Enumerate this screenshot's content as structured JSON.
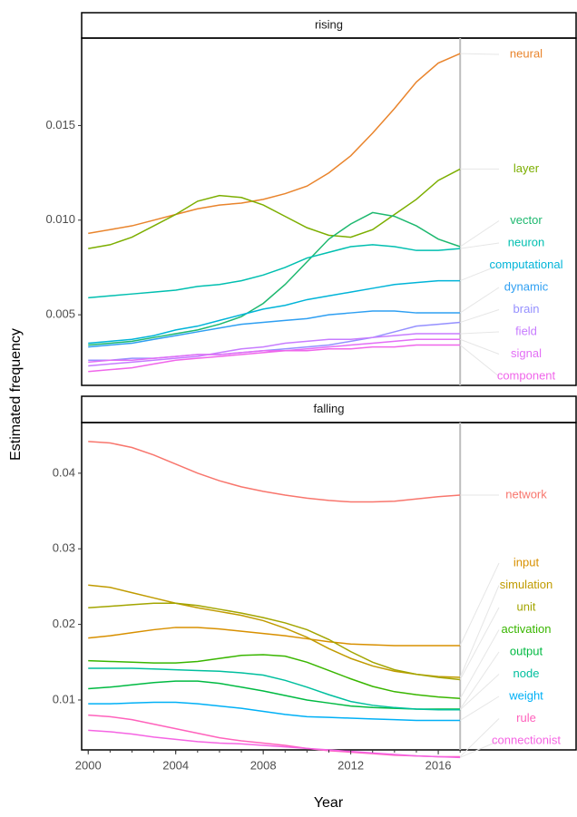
{
  "ylabel": "Estimated frequency",
  "xlabel": "Year",
  "chart_data": [
    {
      "type": "line",
      "title": "rising",
      "x": [
        2000,
        2001,
        2002,
        2003,
        2004,
        2005,
        2006,
        2007,
        2008,
        2009,
        2010,
        2011,
        2012,
        2013,
        2014,
        2015,
        2016,
        2017
      ],
      "xlim": [
        1999.7,
        2022.3
      ],
      "ylim": [
        0.00127,
        0.01962
      ],
      "yticks": [
        0.005,
        {
          "value": 0.01,
          "label": "0.010"
        },
        0.015
      ],
      "vline": 2017,
      "series": [
        {
          "name": "neural",
          "color": "#E9842C",
          "values": [
            0.0093,
            0.0095,
            0.0097,
            0.01,
            0.0103,
            0.0106,
            0.0108,
            0.0109,
            0.0111,
            0.0114,
            0.0118,
            0.0125,
            0.0134,
            0.0146,
            0.0159,
            0.0173,
            0.0183,
            0.0188
          ]
        },
        {
          "name": "layer",
          "color": "#7CAE00",
          "values": [
            0.0085,
            0.0087,
            0.0091,
            0.0097,
            0.0103,
            0.011,
            0.0113,
            0.0112,
            0.0108,
            0.0102,
            0.0096,
            0.0092,
            0.0091,
            0.0095,
            0.0103,
            0.0111,
            0.0121,
            0.0127
          ]
        },
        {
          "name": "vector",
          "color": "#1DB86F",
          "values": [
            0.0034,
            0.0035,
            0.0036,
            0.0038,
            0.004,
            0.0042,
            0.0045,
            0.0049,
            0.0056,
            0.0066,
            0.0078,
            0.009,
            0.0098,
            0.0104,
            0.0102,
            0.0097,
            0.009,
            0.0086
          ]
        },
        {
          "name": "neuron",
          "color": "#00BFB0",
          "values": [
            0.0059,
            0.006,
            0.0061,
            0.0062,
            0.0063,
            0.0065,
            0.0066,
            0.0068,
            0.0071,
            0.0075,
            0.008,
            0.0083,
            0.0086,
            0.0087,
            0.0086,
            0.0084,
            0.0084,
            0.0085
          ]
        },
        {
          "name": "computational",
          "color": "#00B4D8",
          "values": [
            0.0035,
            0.0036,
            0.0037,
            0.0039,
            0.0042,
            0.0044,
            0.0047,
            0.005,
            0.0053,
            0.0055,
            0.0058,
            0.006,
            0.0062,
            0.0064,
            0.0066,
            0.0067,
            0.0068,
            0.0068
          ]
        },
        {
          "name": "dynamic",
          "color": "#2E9FF2",
          "values": [
            0.0033,
            0.0034,
            0.0035,
            0.0037,
            0.0039,
            0.0041,
            0.0043,
            0.0045,
            0.0046,
            0.0047,
            0.0048,
            0.005,
            0.0051,
            0.0052,
            0.0052,
            0.0051,
            0.0051,
            0.0051
          ]
        },
        {
          "name": "brain",
          "color": "#9590FF",
          "values": [
            0.0026,
            0.0026,
            0.0027,
            0.0027,
            0.0028,
            0.0029,
            0.0029,
            0.003,
            0.0031,
            0.0032,
            0.0033,
            0.0034,
            0.0036,
            0.0038,
            0.0041,
            0.0044,
            0.0045,
            0.0046
          ]
        },
        {
          "name": "field",
          "color": "#C77CFF",
          "values": [
            0.0023,
            0.0024,
            0.0025,
            0.0026,
            0.0027,
            0.0028,
            0.003,
            0.0032,
            0.0033,
            0.0035,
            0.0036,
            0.0037,
            0.0037,
            0.0038,
            0.0039,
            0.004,
            0.004,
            0.004
          ]
        },
        {
          "name": "signal",
          "color": "#E36EF6",
          "values": [
            0.0025,
            0.0026,
            0.0026,
            0.0027,
            0.0028,
            0.0029,
            0.0029,
            0.003,
            0.0031,
            0.0031,
            0.0032,
            0.0033,
            0.0034,
            0.0035,
            0.0036,
            0.0037,
            0.0037,
            0.0037
          ]
        },
        {
          "name": "component",
          "color": "#F066EA",
          "values": [
            0.002,
            0.0021,
            0.0022,
            0.0024,
            0.0026,
            0.0027,
            0.0028,
            0.0029,
            0.003,
            0.0031,
            0.0031,
            0.0032,
            0.0032,
            0.0033,
            0.0033,
            0.0034,
            0.0034,
            0.0034
          ]
        }
      ]
    },
    {
      "type": "line",
      "title": "falling",
      "x": [
        2000,
        2001,
        2002,
        2003,
        2004,
        2005,
        2006,
        2007,
        2008,
        2009,
        2010,
        2011,
        2012,
        2013,
        2014,
        2015,
        2016,
        2017
      ],
      "xlim": [
        1999.7,
        2022.3
      ],
      "ylim": [
        0.0034,
        0.0467
      ],
      "yticks": [
        0.01,
        0.02,
        0.03,
        0.04
      ],
      "xticks": [
        2000,
        2004,
        2008,
        2012,
        2016
      ],
      "vline": 2017,
      "series": [
        {
          "name": "network",
          "color": "#F8766D",
          "values": [
            0.0442,
            0.044,
            0.0434,
            0.0424,
            0.0412,
            0.04,
            0.039,
            0.0382,
            0.0376,
            0.0371,
            0.0367,
            0.0364,
            0.0362,
            0.0362,
            0.0363,
            0.0366,
            0.0369,
            0.0371
          ]
        },
        {
          "name": "input",
          "color": "#D89000",
          "values": [
            0.0182,
            0.0185,
            0.0189,
            0.0193,
            0.0196,
            0.0196,
            0.0194,
            0.0191,
            0.0188,
            0.0185,
            0.0181,
            0.0177,
            0.0174,
            0.0173,
            0.0172,
            0.0172,
            0.0172,
            0.0172
          ]
        },
        {
          "name": "simulation",
          "color": "#C09B00",
          "values": [
            0.0252,
            0.0249,
            0.0242,
            0.0235,
            0.0228,
            0.0222,
            0.0217,
            0.0212,
            0.0205,
            0.0195,
            0.0183,
            0.0168,
            0.0155,
            0.0145,
            0.0138,
            0.0134,
            0.0131,
            0.013
          ]
        },
        {
          "name": "unit",
          "color": "#A3A500",
          "values": [
            0.0222,
            0.0224,
            0.0226,
            0.0228,
            0.0228,
            0.0225,
            0.022,
            0.0215,
            0.0209,
            0.0202,
            0.0193,
            0.018,
            0.0164,
            0.015,
            0.014,
            0.0134,
            0.013,
            0.0127
          ]
        },
        {
          "name": "activation",
          "color": "#39B600",
          "values": [
            0.0152,
            0.0151,
            0.015,
            0.0149,
            0.0149,
            0.0151,
            0.0155,
            0.0159,
            0.016,
            0.0158,
            0.015,
            0.0139,
            0.0128,
            0.0118,
            0.0111,
            0.0107,
            0.0104,
            0.0102
          ]
        },
        {
          "name": "output",
          "color": "#00BA42",
          "values": [
            0.0115,
            0.0117,
            0.012,
            0.0123,
            0.0125,
            0.0125,
            0.0122,
            0.0117,
            0.0112,
            0.0106,
            0.01,
            0.0096,
            0.0092,
            0.009,
            0.0089,
            0.0088,
            0.0088,
            0.0088
          ]
        },
        {
          "name": "node",
          "color": "#00BF9E",
          "values": [
            0.0142,
            0.0142,
            0.0142,
            0.0141,
            0.014,
            0.0139,
            0.0138,
            0.0136,
            0.0133,
            0.0126,
            0.0117,
            0.0107,
            0.0098,
            0.0093,
            0.009,
            0.0088,
            0.0087,
            0.0087
          ]
        },
        {
          "name": "weight",
          "color": "#00B0F6",
          "values": [
            0.0095,
            0.0095,
            0.0096,
            0.0097,
            0.0097,
            0.0095,
            0.0092,
            0.0089,
            0.0085,
            0.0081,
            0.0078,
            0.0077,
            0.0076,
            0.0075,
            0.0074,
            0.0073,
            0.0073,
            0.0073
          ]
        },
        {
          "name": "rule",
          "color": "#FF62BC",
          "values": [
            0.008,
            0.0078,
            0.0074,
            0.0068,
            0.0062,
            0.0056,
            0.005,
            0.0046,
            0.0043,
            0.004,
            0.0036,
            0.0033,
            0.0031,
            0.0029,
            0.0027,
            0.0026,
            0.0025,
            0.0025
          ]
        },
        {
          "name": "connectionist",
          "color": "#F564E3",
          "values": [
            0.006,
            0.0058,
            0.0055,
            0.0051,
            0.0048,
            0.0045,
            0.0043,
            0.0042,
            0.004,
            0.0038,
            0.0036,
            0.0034,
            0.0032,
            0.003,
            0.0028,
            0.0026,
            0.0025,
            0.0024
          ]
        }
      ]
    }
  ]
}
